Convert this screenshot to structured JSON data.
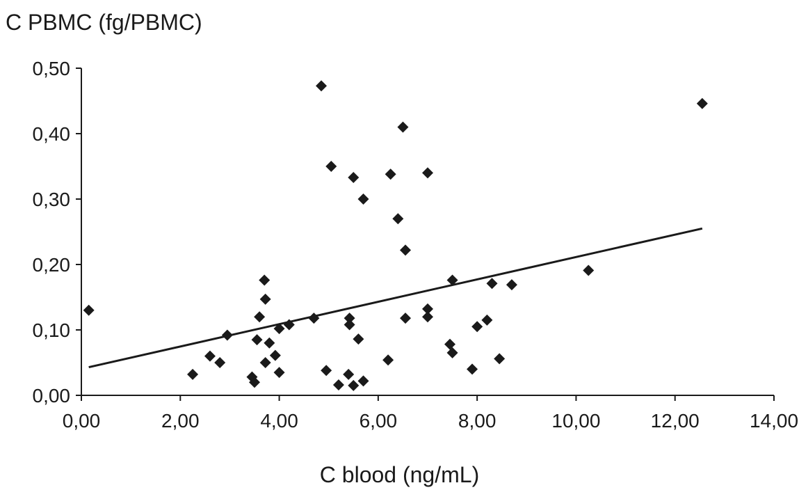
{
  "chart_data": {
    "type": "scatter",
    "ylabel": "C PBMC (fg/PBMC)",
    "xlabel": "C blood (ng/mL)",
    "xlim": [
      0,
      14
    ],
    "ylim": [
      0,
      0.5
    ],
    "x_ticks": [
      "0,00",
      "2,00",
      "4,00",
      "6,00",
      "8,00",
      "10,00",
      "12,00",
      "14,00"
    ],
    "y_ticks": [
      "0,00",
      "0,10",
      "0,20",
      "0,30",
      "0,40",
      "0,50"
    ],
    "grid": false,
    "marker": "diamond",
    "points": [
      [
        0.15,
        0.13
      ],
      [
        2.25,
        0.032
      ],
      [
        2.6,
        0.06
      ],
      [
        2.8,
        0.05
      ],
      [
        2.95,
        0.092
      ],
      [
        3.45,
        0.028
      ],
      [
        3.5,
        0.02
      ],
      [
        3.55,
        0.085
      ],
      [
        3.6,
        0.12
      ],
      [
        3.7,
        0.176
      ],
      [
        3.72,
        0.147
      ],
      [
        3.72,
        0.05
      ],
      [
        3.8,
        0.08
      ],
      [
        3.92,
        0.061
      ],
      [
        4.0,
        0.035
      ],
      [
        4.0,
        0.102
      ],
      [
        4.2,
        0.108
      ],
      [
        4.7,
        0.118
      ],
      [
        4.85,
        0.473
      ],
      [
        4.95,
        0.038
      ],
      [
        5.05,
        0.35
      ],
      [
        5.2,
        0.016
      ],
      [
        5.4,
        0.032
      ],
      [
        5.42,
        0.118
      ],
      [
        5.42,
        0.108
      ],
      [
        5.5,
        0.015
      ],
      [
        5.5,
        0.333
      ],
      [
        5.6,
        0.086
      ],
      [
        5.7,
        0.3
      ],
      [
        5.7,
        0.022
      ],
      [
        6.2,
        0.054
      ],
      [
        6.25,
        0.338
      ],
      [
        6.4,
        0.27
      ],
      [
        6.5,
        0.41
      ],
      [
        6.55,
        0.222
      ],
      [
        6.55,
        0.118
      ],
      [
        7.0,
        0.34
      ],
      [
        7.0,
        0.132
      ],
      [
        7.0,
        0.12
      ],
      [
        7.45,
        0.078
      ],
      [
        7.5,
        0.176
      ],
      [
        7.5,
        0.065
      ],
      [
        7.9,
        0.04
      ],
      [
        8.0,
        0.105
      ],
      [
        8.2,
        0.115
      ],
      [
        8.3,
        0.171
      ],
      [
        8.45,
        0.056
      ],
      [
        8.7,
        0.169
      ],
      [
        10.25,
        0.191
      ],
      [
        12.55,
        0.446
      ]
    ],
    "trendline": {
      "x": [
        0.15,
        12.55
      ],
      "y": [
        0.043,
        0.255
      ]
    }
  }
}
